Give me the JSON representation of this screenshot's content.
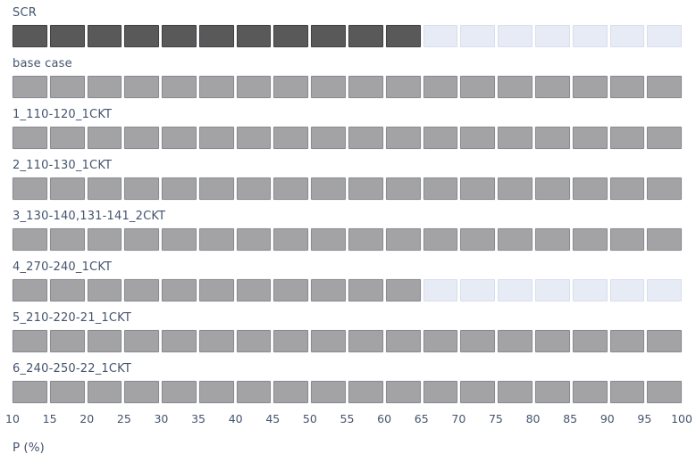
{
  "chart_data": {
    "type": "bar",
    "orientation": "horizontal",
    "title": "",
    "xlabel": "P (%)",
    "ylabel": "",
    "xlim": [
      10,
      100
    ],
    "x_ticks": [
      10,
      15,
      20,
      25,
      30,
      35,
      40,
      45,
      50,
      55,
      60,
      65,
      70,
      75,
      80,
      85,
      90,
      95,
      100
    ],
    "segment_size": 5,
    "grid": false,
    "legend": "none",
    "categories": [
      "SCR",
      "base case",
      "1_110-120_1CKT",
      "2_110-130_1CKT",
      "3_130-140,131-141_2CKT",
      "4_270-240_1CKT",
      "5_210-220-21_1CKT",
      "6_240-250-22_1CKT"
    ],
    "values": [
      65,
      100,
      100,
      100,
      100,
      65,
      100,
      100
    ],
    "bar_colors": [
      "#595959",
      "#a3a3a5",
      "#a3a3a5",
      "#a3a3a5",
      "#a3a3a5",
      "#a3a3a5",
      "#a3a3a5",
      "#a3a3a5"
    ],
    "track_color": "#e7ebf5"
  },
  "colors": {
    "label_text": "#44546e",
    "axis_text": "#44546e",
    "dark_fill": "#595959",
    "gray_fill": "#a3a3a5",
    "empty_fill": "#e7ebf5",
    "background": "#ffffff"
  }
}
